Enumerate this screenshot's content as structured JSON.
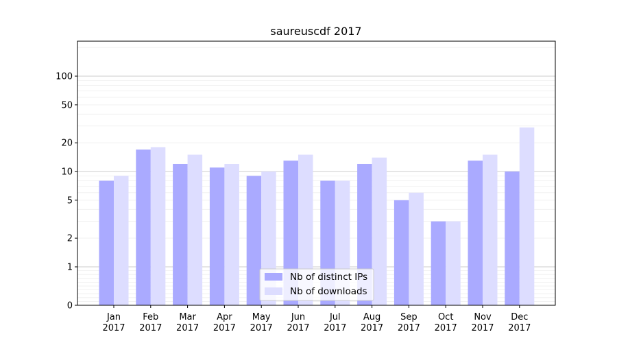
{
  "chart_data": {
    "type": "bar",
    "title": "saureuscdf 2017",
    "xlabel": "",
    "ylabel": "",
    "yscale": "symlog",
    "ylim": [
      0,
      120
    ],
    "yticks": [
      0,
      1,
      2,
      5,
      10,
      20,
      50,
      100
    ],
    "categories": [
      {
        "month": "Jan",
        "year": "2017"
      },
      {
        "month": "Feb",
        "year": "2017"
      },
      {
        "month": "Mar",
        "year": "2017"
      },
      {
        "month": "Apr",
        "year": "2017"
      },
      {
        "month": "May",
        "year": "2017"
      },
      {
        "month": "Jun",
        "year": "2017"
      },
      {
        "month": "Jul",
        "year": "2017"
      },
      {
        "month": "Aug",
        "year": "2017"
      },
      {
        "month": "Sep",
        "year": "2017"
      },
      {
        "month": "Oct",
        "year": "2017"
      },
      {
        "month": "Nov",
        "year": "2017"
      },
      {
        "month": "Dec",
        "year": "2017"
      }
    ],
    "series": [
      {
        "name": "Nb of distinct IPs",
        "color": "#aaaaff",
        "values": [
          8,
          17,
          12,
          11,
          9,
          13,
          8,
          12,
          5,
          3,
          13,
          10
        ]
      },
      {
        "name": "Nb of downloads",
        "color": "#ddddff",
        "values": [
          9,
          18,
          15,
          12,
          10,
          15,
          8,
          14,
          6,
          3,
          15,
          29
        ]
      }
    ],
    "legend": {
      "position": "lower-center"
    },
    "grid": {
      "major_color": "#cccccc",
      "minor_color": "#eeeeee"
    }
  }
}
